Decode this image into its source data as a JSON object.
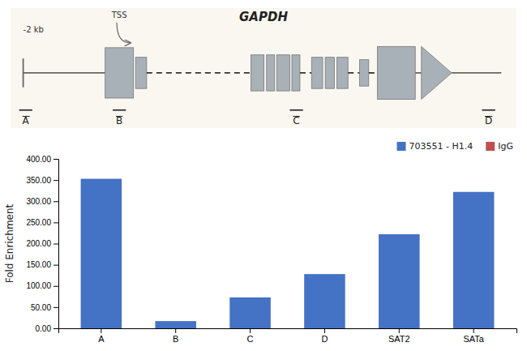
{
  "chart_data": {
    "type": "bar",
    "title": "GAPDH",
    "annotations": [
      "-2 kb",
      "TSS",
      "A",
      "B",
      "C",
      "D"
    ],
    "categories": [
      "A",
      "B",
      "C",
      "D",
      "SAT2",
      "SATa"
    ],
    "series": [
      {
        "name": "703551 - H1.4",
        "color": "#4472C4",
        "values": [
          353,
          17,
          73,
          128,
          222,
          322
        ]
      },
      {
        "name": "IgG",
        "color": "#C0504D",
        "values": [
          null,
          null,
          null,
          null,
          null,
          null
        ]
      }
    ],
    "ylabel": "Fold Enrichment",
    "ylim": [
      0,
      400
    ],
    "yticks": [
      {
        "value": 0,
        "label": "0.00"
      },
      {
        "value": 50,
        "label": "50.00"
      },
      {
        "value": 100,
        "label": "100.00"
      },
      {
        "value": 150,
        "label": "150.00"
      },
      {
        "value": 200,
        "label": "200.00"
      },
      {
        "value": 250,
        "label": "250.00"
      },
      {
        "value": 300,
        "label": "300.00"
      },
      {
        "value": 350,
        "label": "350.00"
      },
      {
        "value": 400,
        "label": "400.00"
      }
    ],
    "grid": false,
    "legend": "upper right"
  }
}
